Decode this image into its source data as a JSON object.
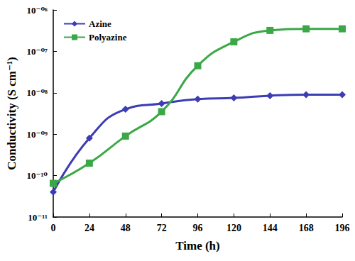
{
  "chart_data": {
    "type": "line",
    "x_label": "Time (h)",
    "y_label": "Conductivity (S cm⁻¹)",
    "categories": [
      "0",
      "24",
      "48",
      "72",
      "96",
      "120",
      "144",
      "168",
      "196"
    ],
    "series": [
      {
        "name": "Azine",
        "color": "#3c3cb4",
        "marker": "diamond",
        "line_style": "smooth",
        "values": [
          4e-11,
          8e-10,
          4e-09,
          5.5e-09,
          7e-09,
          7.5e-09,
          8.5e-09,
          9e-09,
          9e-09
        ]
      },
      {
        "name": "Polyazine",
        "color": "#3aa847",
        "marker": "square",
        "line_style": "smooth",
        "values": [
          6.5e-11,
          2e-10,
          9e-10,
          3.5e-09,
          4.5e-08,
          1.7e-07,
          3.2e-07,
          3.5e-07,
          3.5e-07
        ]
      }
    ],
    "log": "y",
    "ylim": [
      1e-11,
      1e-06
    ],
    "yticks": [
      {
        "value": 1e-11,
        "label": "10⁻¹¹"
      },
      {
        "value": 1e-10,
        "label": "10⁻¹⁰"
      },
      {
        "value": 1e-09,
        "label": "10⁻⁰⁹"
      },
      {
        "value": 1e-08,
        "label": "10⁻⁰⁸"
      },
      {
        "value": 1e-07,
        "label": "10⁻⁰⁷"
      },
      {
        "value": 1e-06,
        "label": "10⁻⁰⁶"
      }
    ],
    "grid": false,
    "legend": "upper left"
  }
}
